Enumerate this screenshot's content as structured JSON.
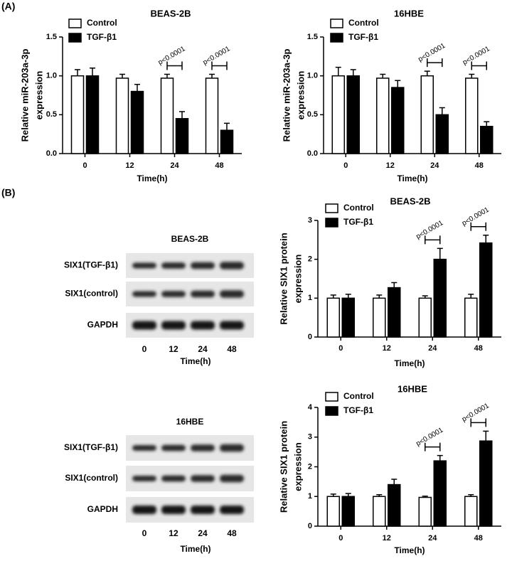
{
  "panels": [
    "(A)",
    "(B)"
  ],
  "blots": [
    {
      "title": "BEAS-2B",
      "rows": [
        "SIX1(TGF-β1)",
        "SIX1(control)",
        "GAPDH"
      ],
      "lanes": [
        "0",
        "12",
        "24",
        "48"
      ],
      "xlabel": "Time(h)"
    },
    {
      "title": "16HBE",
      "rows": [
        "SIX1(TGF-β1)",
        "SIX1(control)",
        "GAPDH"
      ],
      "lanes": [
        "0",
        "12",
        "24",
        "48"
      ],
      "xlabel": "Time(h)"
    }
  ],
  "chart_data": [
    {
      "type": "bar",
      "title": "BEAS-2B",
      "ylabel": [
        "Relative miR-203a-3p",
        "expression"
      ],
      "xlabel": "Time(h)",
      "categories": [
        "0",
        "12",
        "24",
        "48"
      ],
      "series": [
        {
          "name": "Control",
          "color": "#ffffff",
          "values": [
            1.0,
            0.97,
            0.97,
            0.97
          ],
          "errors": [
            0.08,
            0.05,
            0.05,
            0.05
          ]
        },
        {
          "name": "TGF-β1",
          "color": "#000000",
          "values": [
            1.0,
            0.8,
            0.45,
            0.3
          ],
          "errors": [
            0.1,
            0.09,
            0.09,
            0.09
          ]
        }
      ],
      "ylim": [
        0,
        1.5
      ],
      "yticks": [
        {
          "value": 0,
          "label": "0.0"
        },
        0.5,
        {
          "value": 1,
          "label": "1.0"
        },
        1.5
      ],
      "annotations": [
        {
          "text": "p<0.0001",
          "at": "24"
        },
        {
          "text": "p<0.0001",
          "at": "48"
        }
      ]
    },
    {
      "type": "bar",
      "title": "16HBE",
      "ylabel": [
        "Relative miR-203a-3p",
        "expression"
      ],
      "xlabel": "Time(h)",
      "categories": [
        "0",
        "12",
        "24",
        "48"
      ],
      "series": [
        {
          "name": "Control",
          "color": "#ffffff",
          "values": [
            1.0,
            0.97,
            1.0,
            0.97
          ],
          "errors": [
            0.11,
            0.05,
            0.06,
            0.05
          ]
        },
        {
          "name": "TGF-β1",
          "color": "#000000",
          "values": [
            1.0,
            0.85,
            0.5,
            0.35
          ],
          "errors": [
            0.08,
            0.09,
            0.09,
            0.06
          ]
        }
      ],
      "ylim": [
        0,
        1.5
      ],
      "yticks": [
        {
          "value": 0,
          "label": "0.0"
        },
        0.5,
        {
          "value": 1,
          "label": "1.0"
        },
        1.5
      ],
      "annotations": [
        {
          "text": "p<0.0001",
          "at": "24"
        },
        {
          "text": "p<0.0001",
          "at": "48"
        }
      ]
    },
    {
      "type": "bar",
      "title": "BEAS-2B",
      "ylabel": [
        "Relative SIX1 protein",
        "expression"
      ],
      "xlabel": "Time(h)",
      "categories": [
        "0",
        "12",
        "24",
        "48"
      ],
      "series": [
        {
          "name": "Control",
          "color": "#ffffff",
          "values": [
            1,
            1,
            1,
            1
          ],
          "errors": [
            0.08,
            0.08,
            0.06,
            0.1
          ]
        },
        {
          "name": "TGF-β1",
          "color": "#000000",
          "values": [
            1,
            1.27,
            2.0,
            2.42
          ],
          "errors": [
            0.1,
            0.13,
            0.28,
            0.2
          ]
        }
      ],
      "ylim": [
        0,
        3
      ],
      "yticks": [
        0,
        1,
        2,
        3
      ],
      "annotations": [
        {
          "text": "p<0.0001",
          "at": "24"
        },
        {
          "text": "p<0.0001",
          "at": "48"
        }
      ]
    },
    {
      "type": "bar",
      "title": "16HBE",
      "ylabel": [
        "Relative SIX1 protein",
        "expression"
      ],
      "xlabel": "Time(h)",
      "categories": [
        "0",
        "12",
        "24",
        "48"
      ],
      "series": [
        {
          "name": "Control",
          "color": "#ffffff",
          "values": [
            1,
            1,
            0.97,
            1
          ],
          "errors": [
            0.08,
            0.06,
            0.04,
            0.06
          ]
        },
        {
          "name": "TGF-β1",
          "color": "#000000",
          "values": [
            1,
            1.4,
            2.2,
            2.87
          ],
          "errors": [
            0.1,
            0.18,
            0.18,
            0.33
          ]
        }
      ],
      "ylim": [
        0,
        4
      ],
      "yticks": [
        0,
        1,
        2,
        3,
        4
      ],
      "annotations": [
        {
          "text": "p<0.0001",
          "at": "24"
        },
        {
          "text": "p<0.0001",
          "at": "48"
        }
      ]
    }
  ]
}
